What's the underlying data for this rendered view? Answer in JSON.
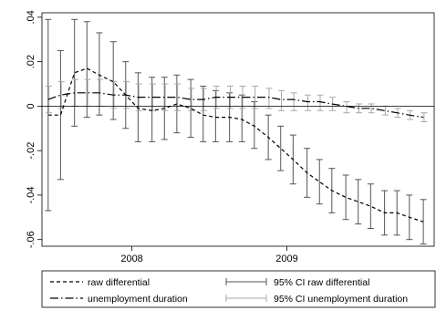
{
  "chart_data": {
    "type": "line",
    "title": "",
    "xlabel": "",
    "ylabel": "",
    "xlim": [
      2007.42,
      2009.95
    ],
    "ylim": [
      -0.063,
      0.042
    ],
    "x_ticks": [
      {
        "value": 2008,
        "label": "2008"
      },
      {
        "value": 2009,
        "label": "2009"
      }
    ],
    "y_ticks": [
      {
        "value": 0.04,
        "label": ".04"
      },
      {
        "value": 0.02,
        "label": ".02"
      },
      {
        "value": 0,
        "label": "0"
      },
      {
        "value": -0.02,
        "label": "-.02"
      },
      {
        "value": -0.04,
        "label": "-.04"
      },
      {
        "value": -0.06,
        "label": "-.06"
      }
    ],
    "reference_line_y": 0,
    "grid": false,
    "x": [
      2007.46,
      2007.54,
      2007.63,
      2007.71,
      2007.79,
      2007.88,
      2007.96,
      2008.04,
      2008.13,
      2008.21,
      2008.29,
      2008.38,
      2008.46,
      2008.54,
      2008.63,
      2008.71,
      2008.79,
      2008.88,
      2008.96,
      2009.04,
      2009.13,
      2009.21,
      2009.29,
      2009.38,
      2009.46,
      2009.54,
      2009.63,
      2009.71,
      2009.79,
      2009.88
    ],
    "series": [
      {
        "name": "raw differential",
        "style": "short-dash",
        "color": "#000000",
        "values": [
          -0.004,
          -0.004,
          0.015,
          0.017,
          0.014,
          0.011,
          0.005,
          -0.001,
          -0.002,
          -0.001,
          0.001,
          -0.001,
          -0.004,
          -0.005,
          -0.005,
          -0.006,
          -0.009,
          -0.014,
          -0.019,
          -0.024,
          -0.03,
          -0.034,
          -0.038,
          -0.041,
          -0.043,
          -0.045,
          -0.048,
          -0.048,
          -0.05,
          -0.052
        ],
        "ci_lower": [
          -0.047,
          -0.033,
          -0.009,
          -0.005,
          -0.004,
          -0.006,
          -0.01,
          -0.016,
          -0.016,
          -0.015,
          -0.012,
          -0.014,
          -0.016,
          -0.016,
          -0.016,
          -0.016,
          -0.019,
          -0.024,
          -0.029,
          -0.035,
          -0.041,
          -0.044,
          -0.048,
          -0.051,
          -0.053,
          -0.055,
          -0.058,
          -0.058,
          -0.06,
          -0.062
        ],
        "ci_upper": [
          0.039,
          0.025,
          0.039,
          0.038,
          0.033,
          0.029,
          0.02,
          0.015,
          0.013,
          0.013,
          0.014,
          0.012,
          0.009,
          0.007,
          0.006,
          0.005,
          0.002,
          -0.004,
          -0.009,
          -0.013,
          -0.019,
          -0.024,
          -0.028,
          -0.031,
          -0.033,
          -0.035,
          -0.038,
          -0.038,
          -0.04,
          -0.042
        ]
      },
      {
        "name": "unemployment duration",
        "style": "long-dash-dot",
        "color": "#000000",
        "values": [
          0.003,
          0.005,
          0.006,
          0.006,
          0.006,
          0.005,
          0.005,
          0.004,
          0.004,
          0.004,
          0.004,
          0.003,
          0.003,
          0.004,
          0.004,
          0.004,
          0.004,
          0.004,
          0.003,
          0.003,
          0.002,
          0.002,
          0.001,
          -0.0,
          -0.001,
          -0.001,
          -0.002,
          -0.003,
          -0.004,
          -0.005
        ],
        "ci_lower": [
          -0.003,
          -0.001,
          0.0,
          0.0,
          0.0,
          -0.001,
          -0.001,
          -0.002,
          -0.002,
          -0.002,
          -0.002,
          -0.002,
          -0.002,
          -0.001,
          -0.001,
          -0.001,
          -0.001,
          -0.001,
          -0.002,
          -0.002,
          -0.002,
          -0.002,
          -0.002,
          -0.003,
          -0.003,
          -0.003,
          -0.004,
          -0.005,
          -0.006,
          -0.007
        ],
        "ci_upper": [
          0.009,
          0.011,
          0.012,
          0.012,
          0.012,
          0.011,
          0.011,
          0.01,
          0.01,
          0.01,
          0.01,
          0.008,
          0.008,
          0.009,
          0.009,
          0.009,
          0.009,
          0.008,
          0.007,
          0.006,
          0.005,
          0.005,
          0.004,
          0.002,
          0.001,
          0.001,
          -0.0,
          -0.001,
          -0.002,
          -0.003
        ]
      }
    ],
    "ci_colors": [
      "#555555",
      "#a8a8a8"
    ],
    "legend": {
      "placement": "bottom",
      "entries": [
        {
          "label": "raw differential",
          "kind": "line",
          "style": "short-dash"
        },
        {
          "label": "95% CI raw differential",
          "kind": "errorbar",
          "color": "#555555"
        },
        {
          "label": "unemployment duration",
          "kind": "line",
          "style": "long-dash-dot"
        },
        {
          "label": "95% CI unemployment duration",
          "kind": "errorbar",
          "color": "#a8a8a8"
        }
      ]
    }
  }
}
